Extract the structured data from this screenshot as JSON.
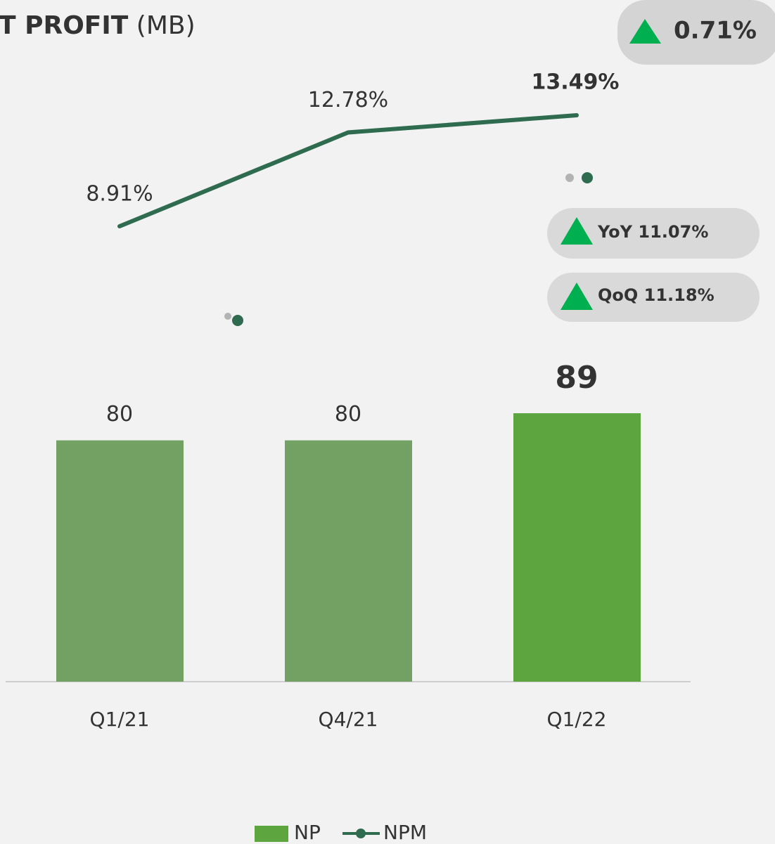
{
  "chart_data": {
    "type": "bar-line",
    "title": "T PROFIT",
    "title_unit": "(MB)",
    "categories": [
      "Q1/21",
      "Q4/21",
      "Q1/22"
    ],
    "series": [
      {
        "name": "NP",
        "type": "bar",
        "color": "#5ca53f",
        "colors": [
          "#72a163",
          "#72a163",
          "#5ca53f"
        ],
        "values": [
          80,
          80,
          89
        ]
      },
      {
        "name": "NPM",
        "type": "line",
        "color": "#2e6b4f",
        "values": [
          8.91,
          12.78,
          13.49
        ],
        "value_labels": [
          "8.91%",
          "12.78%",
          "13.49%"
        ]
      }
    ],
    "annotations": [
      "0.71%",
      "YoY 11.07%",
      "QoQ 11.18%"
    ],
    "legend": "bottom"
  }
}
